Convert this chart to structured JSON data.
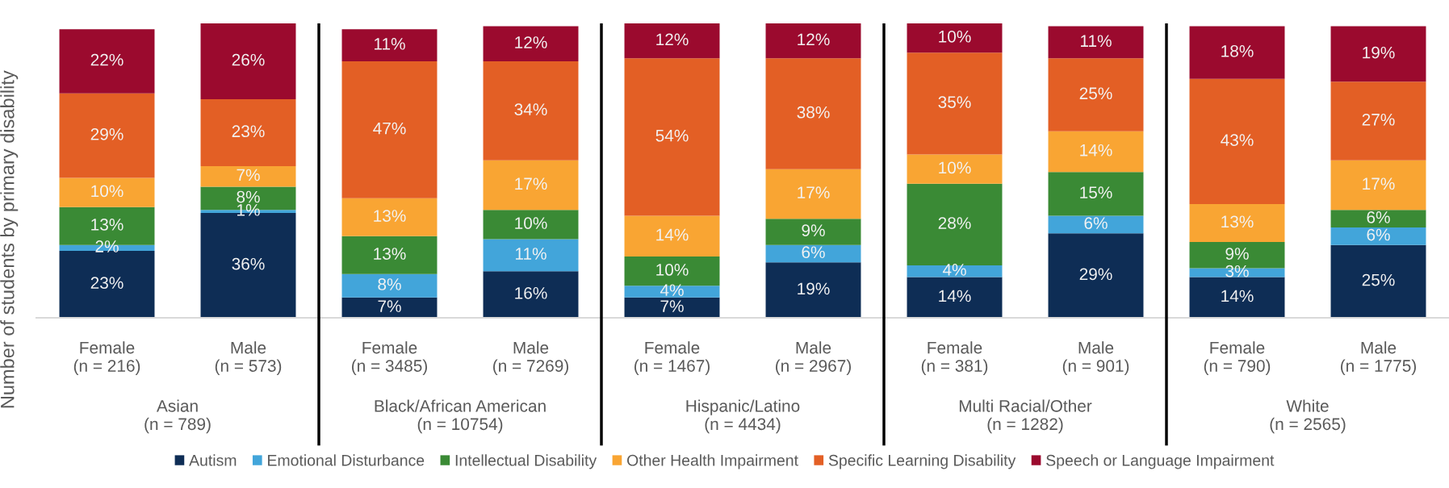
{
  "chart_data": {
    "type": "bar",
    "stacked": true,
    "ylabel": "Number of students by primary disability",
    "categories": [
      "Female\n(n = 216)",
      "Male\n(n = 573)",
      "Female\n(n = 3485)",
      "Male\n(n = 7269)",
      "Female\n(n = 1467)",
      "Male\n(n = 2967)",
      "Female\n(n = 381)",
      "Male\n(n = 901)",
      "Female\n(n = 790)",
      "Male\n(n = 1775)"
    ],
    "annotations": [
      "Asian\n(n = 789)",
      "Black/African American\n(n = 10754)",
      "Hispanic/Latino\n(n = 4434)",
      "Multi Racial/Other\n(n = 1282)",
      "White\n(n = 2565)"
    ],
    "series": [
      {
        "name": "Autism",
        "color": "#0e2d55",
        "values": [
          23,
          36,
          7,
          16,
          7,
          19,
          14,
          29,
          14,
          25
        ],
        "value_labels": [
          "23%",
          "36%",
          "7%",
          "16%",
          "7%",
          "19%",
          "14%",
          "29%",
          "14%",
          "25%"
        ]
      },
      {
        "name": "Emotional Disturbance",
        "color": "#42a5da",
        "values": [
          2,
          1,
          8,
          11,
          4,
          6,
          4,
          6,
          3,
          6
        ],
        "value_labels": [
          "2%",
          "1%",
          "8%",
          "11%",
          "4%",
          "6%",
          "4%",
          "6%",
          "3%",
          "6%"
        ]
      },
      {
        "name": "Intellectual Disability",
        "color": "#3a8a35",
        "values": [
          13,
          8,
          13,
          10,
          10,
          9,
          28,
          15,
          9,
          6
        ],
        "value_labels": [
          "13%",
          "8%",
          "13%",
          "10%",
          "10%",
          "9%",
          "28%",
          "15%",
          "9%",
          "6%"
        ]
      },
      {
        "name": "Other Health Impairment",
        "color": "#f9a533",
        "values": [
          10,
          7,
          13,
          17,
          14,
          17,
          10,
          14,
          13,
          17
        ],
        "value_labels": [
          "10%",
          "7%",
          "13%",
          "17%",
          "14%",
          "17%",
          "10%",
          "14%",
          "13%",
          "17%"
        ]
      },
      {
        "name": "Specific Learning Disability",
        "color": "#e35f25",
        "values": [
          29,
          23,
          47,
          34,
          54,
          38,
          35,
          25,
          43,
          27
        ],
        "value_labels": [
          "29%",
          "23%",
          "47%",
          "34%",
          "54%",
          "38%",
          "35%",
          "25%",
          "43%",
          "27%"
        ]
      },
      {
        "name": "Speech or Language Impairment",
        "color": "#9b0a2e",
        "values": [
          22,
          26,
          11,
          12,
          12,
          12,
          10,
          11,
          18,
          19
        ],
        "value_labels": [
          "22%",
          "26%",
          "11%",
          "12%",
          "12%",
          "12%",
          "10%",
          "11%",
          "18%",
          "19%"
        ]
      }
    ],
    "grid": "x",
    "legend": "bottom",
    "tick_labels": "x"
  }
}
